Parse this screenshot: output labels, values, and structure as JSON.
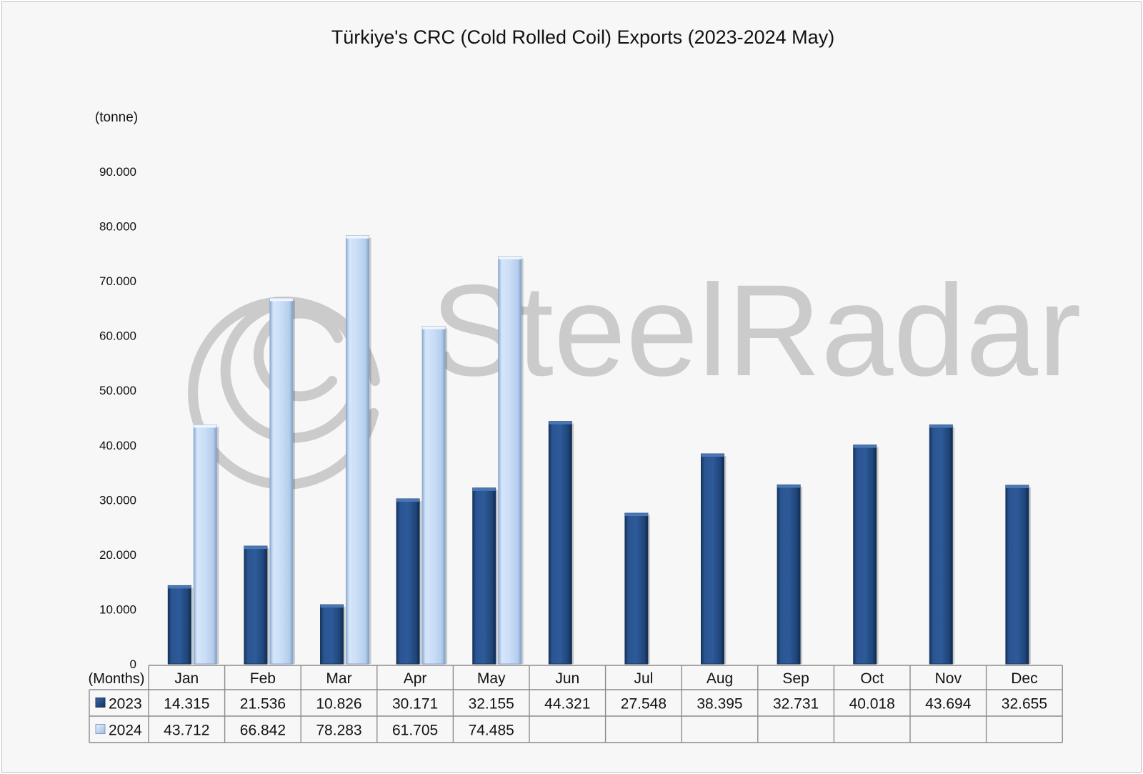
{
  "chart_data": {
    "type": "bar",
    "title": "Türkiye's CRC (Cold Rolled Coil) Exports (2023-2024 May)",
    "ylabel": "(tonne)",
    "xlabel": "(Months)",
    "ylim": [
      0,
      90000
    ],
    "ytick_values": [
      0,
      10000,
      20000,
      30000,
      40000,
      50000,
      60000,
      70000,
      80000,
      90000
    ],
    "ytick_labels": [
      "0",
      "10.000",
      "20.000",
      "30.000",
      "40.000",
      "50.000",
      "60.000",
      "70.000",
      "80.000",
      "90.000"
    ],
    "categories": [
      "Jan",
      "Feb",
      "Mar",
      "Apr",
      "May",
      "Jun",
      "Jul",
      "Aug",
      "Sep",
      "Oct",
      "Nov",
      "Dec"
    ],
    "series": [
      {
        "name": "2023",
        "color": "#254d85",
        "values": [
          14315,
          21536,
          10826,
          30171,
          32155,
          44321,
          27548,
          38395,
          32731,
          40018,
          43694,
          32655
        ],
        "labels": [
          "14.315",
          "21.536",
          "10.826",
          "30.171",
          "32.155",
          "44.321",
          "27.548",
          "38.395",
          "32.731",
          "40.018",
          "43.694",
          "32.655"
        ]
      },
      {
        "name": "2024",
        "color": "#c6dcf6",
        "values": [
          43712,
          66842,
          78283,
          61705,
          74485,
          null,
          null,
          null,
          null,
          null,
          null,
          null
        ],
        "labels": [
          "43.712",
          "66.842",
          "78.283",
          "61.705",
          "74.485",
          "",
          "",
          "",
          "",
          "",
          "",
          ""
        ]
      }
    ],
    "grid": false,
    "legend": "data-table-left",
    "watermark": "SteelRadar"
  }
}
